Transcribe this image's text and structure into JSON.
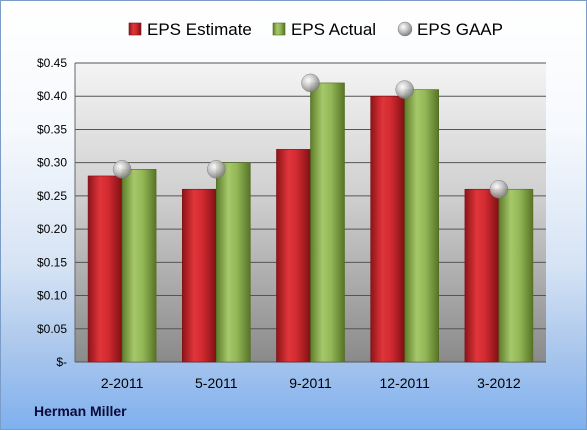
{
  "company": "Herman Miller",
  "colors": {
    "estimate": "#c8262c",
    "actual": "#8ab04e",
    "gaap": "#b5b5b5"
  },
  "chart_data": {
    "type": "bar",
    "categories": [
      "2-2011",
      "5-2011",
      "9-2011",
      "12-2011",
      "3-2012"
    ],
    "series": [
      {
        "name": "EPS Estimate",
        "kind": "bar",
        "values": [
          0.28,
          0.26,
          0.32,
          0.4,
          0.26
        ]
      },
      {
        "name": "EPS Actual",
        "kind": "bar",
        "values": [
          0.29,
          0.3,
          0.42,
          0.41,
          0.26
        ]
      },
      {
        "name": "EPS GAAP",
        "kind": "marker",
        "values": [
          0.29,
          0.29,
          0.42,
          0.41,
          0.26
        ]
      }
    ],
    "ylim": [
      0,
      0.45
    ],
    "yticks": [
      0,
      0.05,
      0.1,
      0.15,
      0.2,
      0.25,
      0.3,
      0.35,
      0.4,
      0.45
    ],
    "ytick_labels": [
      "$-",
      "$0.05",
      "$0.10",
      "$0.15",
      "$0.20",
      "$0.25",
      "$0.30",
      "$0.35",
      "$0.40",
      "$0.45"
    ],
    "legend_position": "top",
    "grid": true
  }
}
